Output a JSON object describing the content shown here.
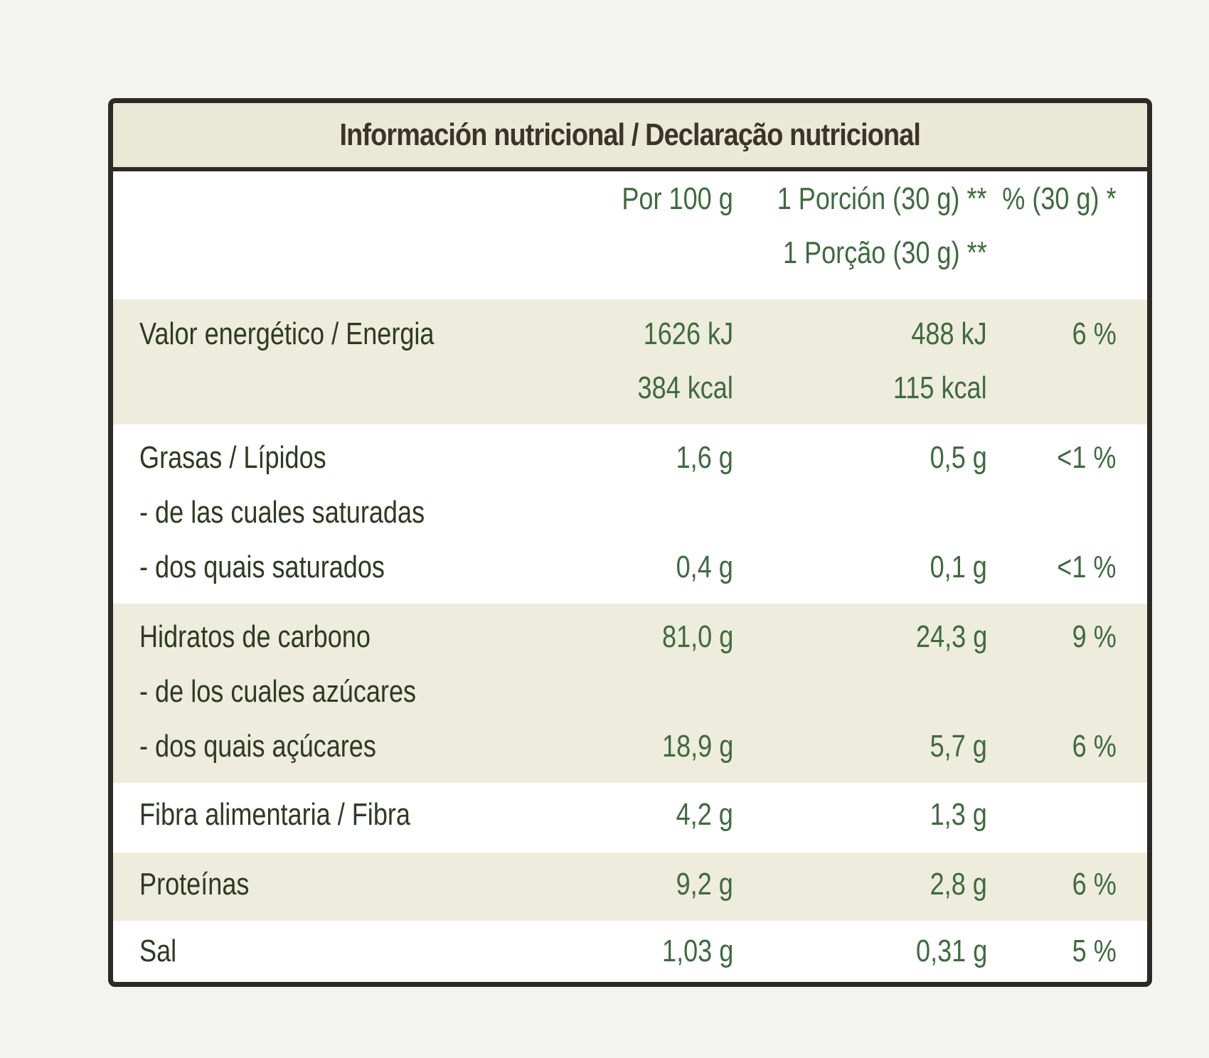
{
  "title": "Información nutricional / Declaração nutricional",
  "columns": {
    "per100": "Por 100 g",
    "portion_es": "1 Porción (30 g) **",
    "portion_pt": "1 Porção (30 g) **",
    "percent": "% (30 g) *"
  },
  "rows": {
    "energy": {
      "label": "Valor energético / Energia",
      "per100_kj": "1626 kJ",
      "per100_kcal": "384 kcal",
      "portion_kj": "488 kJ",
      "portion_kcal": "115 kcal",
      "percent": "6 %"
    },
    "fat": {
      "label": "Grasas / Lípidos",
      "per100": "1,6 g",
      "portion": "0,5 g",
      "percent": "<1 %"
    },
    "saturates": {
      "label_es": "- de las cuales saturadas",
      "label_pt": "- dos quais saturados",
      "per100": "0,4 g",
      "portion": "0,1 g",
      "percent": "<1 %"
    },
    "carbs": {
      "label": "Hidratos de carbono",
      "per100": "81,0 g",
      "portion": "24,3 g",
      "percent": "9 %"
    },
    "sugars": {
      "label_es": "- de los cuales azúcares",
      "label_pt": "- dos quais açúcares",
      "per100": "18,9 g",
      "portion": "5,7 g",
      "percent": "6 %"
    },
    "fibre": {
      "label": "Fibra alimentaria / Fibra",
      "per100": "4,2 g",
      "portion": "1,3 g"
    },
    "protein": {
      "label": "Proteínas",
      "per100": "9,2 g",
      "portion": "2,8 g",
      "percent": "6 %"
    },
    "salt": {
      "label": "Sal",
      "per100": "1,03 g",
      "portion": "0,31 g",
      "percent": "5 %"
    }
  }
}
